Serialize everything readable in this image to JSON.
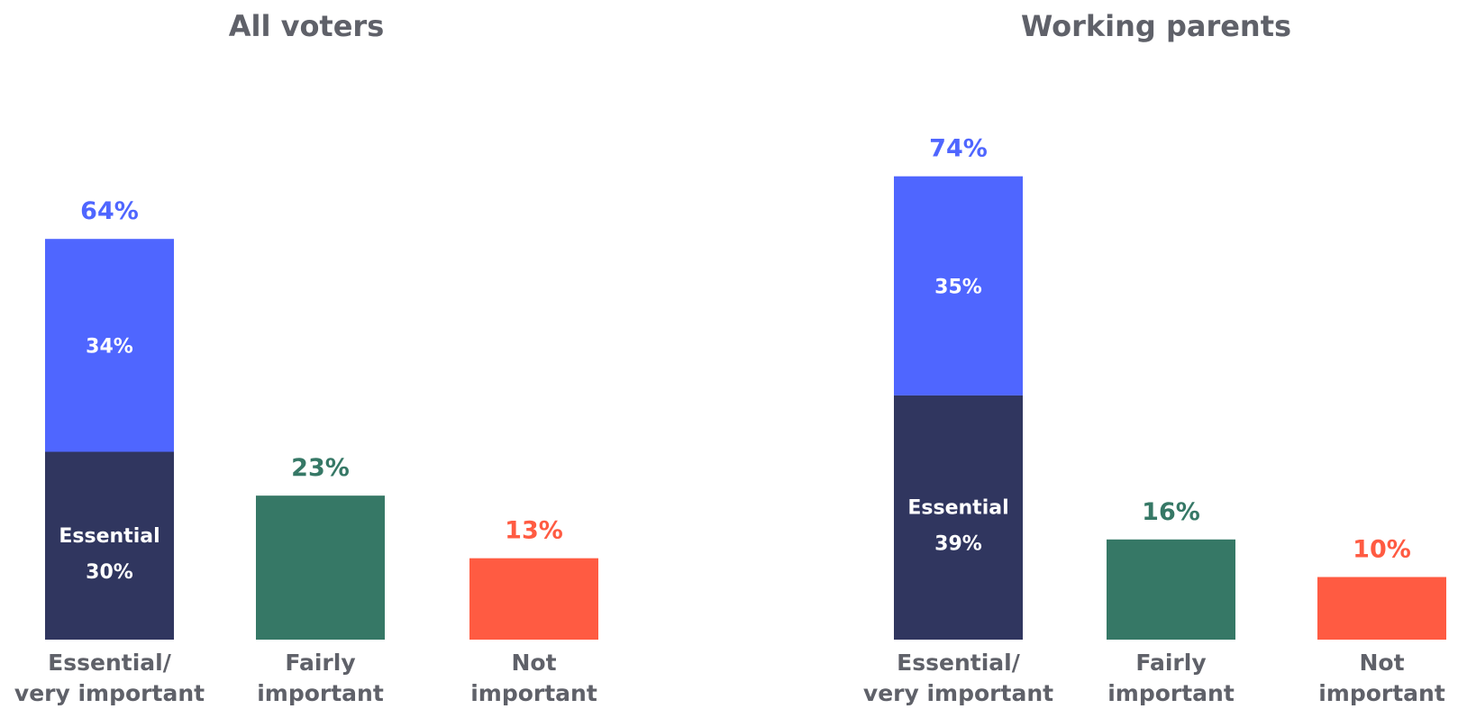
{
  "colors": {
    "essential": "#30365f",
    "very_important": "#4f66ff",
    "fairly": "#367866",
    "not": "#ff5b42",
    "text": "#5f6169"
  },
  "chart_data": [
    {
      "type": "bar",
      "title": "All voters",
      "categories": [
        [
          "Essential/",
          "very important"
        ],
        [
          "Fairly",
          "important"
        ],
        [
          "Not",
          "important"
        ]
      ],
      "stacked_first": {
        "essential": 30,
        "essential_label": "Essential",
        "essential_value_label": "30%",
        "very_important": 34,
        "very_important_label": "34%",
        "total": 64,
        "total_label": "64%"
      },
      "others": [
        {
          "value": 23,
          "label": "23%"
        },
        {
          "value": 13,
          "label": "13%"
        }
      ],
      "ylim": [
        0,
        100
      ]
    },
    {
      "type": "bar",
      "title": "Working parents",
      "categories": [
        [
          "Essential/",
          "very important"
        ],
        [
          "Fairly",
          "important"
        ],
        [
          "Not",
          "important"
        ]
      ],
      "stacked_first": {
        "essential": 39,
        "essential_label": "Essential",
        "essential_value_label": "39%",
        "very_important": 35,
        "very_important_label": "35%",
        "total": 74,
        "total_label": "74%"
      },
      "others": [
        {
          "value": 16,
          "label": "16%"
        },
        {
          "value": 10,
          "label": "10%"
        }
      ],
      "ylim": [
        0,
        100
      ]
    }
  ]
}
